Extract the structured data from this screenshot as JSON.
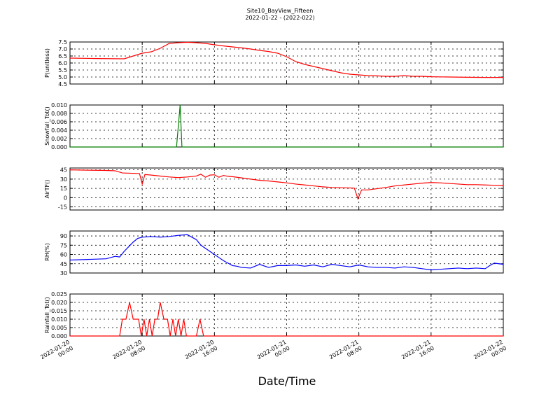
{
  "title": "Site10_BayView_Fifteen",
  "subtitle": "2022-01-22 - (2022-022)",
  "xlabel": "Date/Time",
  "x_ticks": [
    {
      "line1": "2022-01-20",
      "line2": "00:00"
    },
    {
      "line1": "2022-01-20",
      "line2": "08:00"
    },
    {
      "line1": "2022-01-20",
      "line2": "16:00"
    },
    {
      "line1": "2022-01-21",
      "line2": "00:00"
    },
    {
      "line1": "2022-01-21",
      "line2": "08:00"
    },
    {
      "line1": "2022-01-21",
      "line2": "16:00"
    },
    {
      "line1": "2022-01-22",
      "line2": "00:00"
    }
  ],
  "chart_data": [
    {
      "type": "line",
      "ylabel": "P(unitless)",
      "color": "#ff0000",
      "ylim": [
        4.5,
        7.5
      ],
      "yticks": [
        "4.5",
        "5.0",
        "5.5",
        "6.0",
        "6.5",
        "7.0",
        "7.5"
      ],
      "xlim": [
        0,
        48
      ],
      "x": [
        0,
        3,
        6,
        7,
        8,
        9,
        10,
        11,
        12,
        13,
        14,
        15,
        16,
        17,
        18,
        19,
        20,
        21,
        22,
        23,
        24,
        25,
        26,
        27,
        28,
        29,
        30,
        31,
        32,
        33,
        34,
        35,
        36,
        37,
        38,
        39,
        40,
        42,
        44,
        46,
        48
      ],
      "y": [
        6.35,
        6.32,
        6.3,
        6.5,
        6.7,
        6.8,
        7.05,
        7.4,
        7.45,
        7.48,
        7.45,
        7.4,
        7.3,
        7.22,
        7.15,
        7.08,
        7.0,
        6.9,
        6.82,
        6.7,
        6.45,
        6.1,
        5.9,
        5.75,
        5.6,
        5.45,
        5.3,
        5.2,
        5.15,
        5.1,
        5.08,
        5.05,
        5.05,
        5.1,
        5.05,
        5.05,
        5.02,
        5.0,
        4.98,
        4.97,
        4.97
      ]
    },
    {
      "type": "line",
      "ylabel": "Snowfall_Tot()",
      "color": "#007f00",
      "ylim": [
        0,
        0.01
      ],
      "yticks": [
        "0.000",
        "0.002",
        "0.004",
        "0.006",
        "0.008",
        "0.010"
      ],
      "xlim": [
        0,
        48
      ],
      "x": [
        0,
        11.8,
        12.2,
        12.4,
        48
      ],
      "y": [
        0,
        0,
        0.01,
        0,
        0
      ]
    },
    {
      "type": "line",
      "ylabel": "AirTF()",
      "color": "#ff0000",
      "ylim": [
        -20,
        48
      ],
      "yticks": [
        "-15",
        "0",
        "15",
        "30",
        "45"
      ],
      "xlim": [
        0,
        48
      ],
      "x": [
        0,
        2,
        4,
        5,
        5.8,
        7.7,
        8.0,
        8.3,
        9,
        10,
        11,
        12,
        13,
        14,
        14.5,
        15,
        15.5,
        16,
        16.5,
        17,
        17.5,
        18,
        19,
        20,
        21,
        22,
        23,
        24,
        25,
        26,
        27,
        28,
        29,
        31.5,
        31.9,
        32.3,
        33,
        34,
        35,
        36,
        37,
        38,
        39,
        40,
        41,
        42,
        43,
        44,
        45,
        46,
        47,
        48
      ],
      "y": [
        45,
        44.5,
        44,
        43.5,
        40,
        39,
        22,
        37.5,
        36.5,
        35,
        33.5,
        32.5,
        33.5,
        35,
        38,
        33,
        36.5,
        37,
        33,
        36,
        34.5,
        34,
        32,
        30,
        28,
        27,
        25.5,
        24,
        22,
        20.5,
        19,
        17.5,
        16.5,
        15.5,
        -2,
        12.5,
        12.5,
        14.5,
        16.5,
        19,
        20.5,
        22,
        23.5,
        24.5,
        24,
        23,
        22,
        21,
        21,
        20.5,
        20,
        19.5
      ]
    },
    {
      "type": "line",
      "ylabel": "RH(%)",
      "color": "#0000ff",
      "ylim": [
        30,
        98
      ],
      "yticks": [
        "30",
        "45",
        "60",
        "75",
        "90"
      ],
      "xlim": [
        0,
        48
      ],
      "x": [
        0,
        2,
        4,
        5,
        5.5,
        6,
        7,
        7.5,
        8,
        9,
        10,
        11,
        12,
        13,
        13.5,
        14,
        14.5,
        15,
        15.5,
        16,
        16.5,
        17,
        17.5,
        18,
        18.5,
        19,
        20,
        21,
        22,
        23,
        24,
        25,
        26,
        27,
        28,
        29,
        30,
        31,
        32,
        33,
        34,
        35,
        36,
        37,
        38,
        39,
        40,
        41,
        42,
        43,
        44,
        45,
        46,
        46.5,
        47,
        48
      ],
      "y": [
        51,
        52,
        53,
        57,
        56,
        65,
        80,
        86,
        88,
        89,
        88,
        89,
        91,
        92,
        88,
        84,
        75,
        70,
        65,
        60,
        55,
        50,
        46,
        42,
        41,
        39,
        38,
        44,
        39,
        42,
        42,
        43,
        41,
        43,
        40,
        44,
        42,
        40,
        43,
        40,
        39,
        39,
        38,
        40,
        39,
        37,
        35,
        36,
        37,
        38,
        37,
        38,
        37,
        42,
        46,
        44
      ]
    },
    {
      "type": "line",
      "ylabel": "Rainfall_Tot()",
      "color": "#ff0000",
      "ylim": [
        0,
        0.025
      ],
      "yticks": [
        "0.000",
        "0.005",
        "0.010",
        "0.015",
        "0.020",
        "0.025"
      ],
      "xlim": [
        0,
        48
      ],
      "x": [
        0,
        5.5,
        5.8,
        6.2,
        6.6,
        7,
        7.3,
        7.6,
        7.9,
        8.2,
        8.5,
        8.8,
        9.1,
        9.4,
        9.7,
        10,
        10.4,
        10.8,
        11.1,
        11.4,
        11.7,
        12,
        12.3,
        12.6,
        12.9,
        13.2,
        14,
        14.4,
        14.8,
        48
      ],
      "y": [
        0,
        0,
        0.01,
        0.01,
        0.02,
        0.01,
        0.01,
        0.01,
        0,
        0.01,
        0,
        0.01,
        0,
        0.01,
        0.01,
        0.02,
        0.01,
        0.01,
        0,
        0.01,
        0,
        0.01,
        0,
        0.01,
        0,
        0,
        0,
        0.01,
        0,
        0
      ]
    }
  ]
}
